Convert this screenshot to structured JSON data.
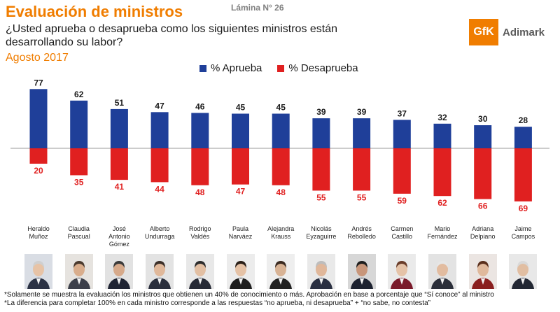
{
  "header": {
    "lamina": "Lámina N° 26",
    "title": "Evaluación de ministros",
    "question": "¿Usted aprueba o desaprueba como los siguientes ministros están desarrollando su labor?",
    "date": "Agosto 2017"
  },
  "logo": {
    "mark": "GfK",
    "name": "Adimark"
  },
  "colors": {
    "approve": "#1f3f99",
    "disapprove": "#e02020",
    "title": "#f07d00",
    "date": "#f07d00"
  },
  "chart_data": {
    "type": "bar",
    "categories": [
      "Heraldo Muñoz",
      "Claudia Pascual",
      "José Antonio Gómez",
      "Alberto Undurraga",
      "Rodrigo Valdés",
      "Paula Narváez",
      "Alejandra Krauss",
      "Nicolás Eyzaguirre",
      "Andrés Rebolledo",
      "Carmen Castillo",
      "Mario Fernández",
      "Adriana Delpiano",
      "Jaime Campos"
    ],
    "category_lines": [
      [
        "Heraldo",
        "Muñoz"
      ],
      [
        "Claudia",
        "Pascual"
      ],
      [
        "José",
        "Antonio",
        "Gómez"
      ],
      [
        "Alberto",
        "Undurraga"
      ],
      [
        "Rodrigo",
        "Valdés"
      ],
      [
        "Paula",
        "Narváez"
      ],
      [
        "Alejandra",
        "Krauss"
      ],
      [
        "Nicolás",
        "Eyzaguirre"
      ],
      [
        "Andrés",
        "Rebolledo"
      ],
      [
        "Carmen",
        "Castillo"
      ],
      [
        "Mario",
        "Fernández"
      ],
      [
        "Adriana",
        "Delpiano"
      ],
      [
        "Jaime",
        "Campos"
      ]
    ],
    "series": [
      {
        "name": "% Aprueba",
        "values": [
          77,
          62,
          51,
          47,
          46,
          45,
          45,
          39,
          39,
          37,
          32,
          30,
          28
        ]
      },
      {
        "name": "% Desaprueba",
        "values": [
          20,
          35,
          41,
          44,
          48,
          47,
          48,
          55,
          55,
          59,
          62,
          66,
          69
        ]
      }
    ],
    "layout": "diverging",
    "legend_position": "top"
  },
  "footnotes": [
    "*Solamente se muestra la evaluación los ministros que obtienen un 40% de conocimiento o más. Aprobación en base a porcentaje que “Sí conoce” al ministro",
    "*La diferencia para completar 100% en cada ministro corresponde a las respuestas “no aprueba, ni desaprueba” + “no sabe, no contesta”"
  ],
  "photos": [
    {
      "bg": "#d9dde4",
      "suit": "#2b3245",
      "skin": "#e7c3a6",
      "hair": "#cfcfcf"
    },
    {
      "bg": "#e6e3df",
      "suit": "#3c3f4a",
      "skin": "#d9ad8c",
      "hair": "#4a3a2e"
    },
    {
      "bg": "#e2e2e2",
      "suit": "#1f2433",
      "skin": "#d6a98a",
      "hair": "#3a3a3a"
    },
    {
      "bg": "#e3e3e3",
      "suit": "#2a2f3d",
      "skin": "#e0b89a",
      "hair": "#3b2f28"
    },
    {
      "bg": "#e8e8e8",
      "suit": "#262a36",
      "skin": "#e2bfa3",
      "hair": "#2c2c2c"
    },
    {
      "bg": "#ececec",
      "suit": "#1e1e1e",
      "skin": "#e5c2a6",
      "hair": "#2a1f18"
    },
    {
      "bg": "#eeeeee",
      "suit": "#222222",
      "skin": "#d8b395",
      "hair": "#3a2a20"
    },
    {
      "bg": "#e9e9e9",
      "suit": "#2a3042",
      "skin": "#e0b79a",
      "hair": "#bdbdbd"
    },
    {
      "bg": "#d7d7d7",
      "suit": "#1d2230",
      "skin": "#c8967a",
      "hair": "#1e1e1e"
    },
    {
      "bg": "#eaeaea",
      "suit": "#7a1a2a",
      "skin": "#e5c3a8",
      "hair": "#6a3d2a"
    },
    {
      "bg": "#e3e3e3",
      "suit": "#2b2f3a",
      "skin": "#e2bca0",
      "hair": "#e6e6e6"
    },
    {
      "bg": "#ebe5e2",
      "suit": "#8a1f1f",
      "skin": "#e0b99c",
      "hair": "#5a2f1c"
    },
    {
      "bg": "#e8e8e8",
      "suit": "#222733",
      "skin": "#e1bea2",
      "hair": "#d9d9d9"
    }
  ]
}
